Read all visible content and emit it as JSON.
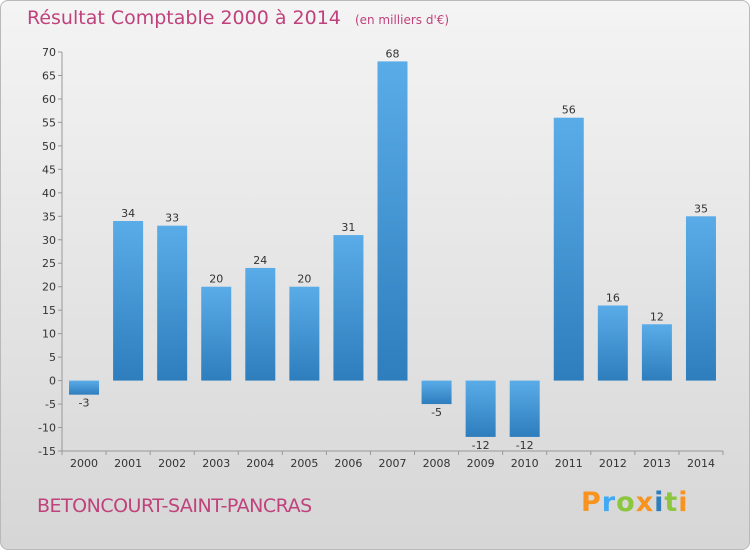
{
  "title": "Résultat Comptable 2000 à 2014",
  "subtitle": "(en milliers d'€)",
  "commune": "BETONCOURT-SAINT-PANCRAS",
  "logo": "Proxiti",
  "colors": {
    "title": "#c0427c",
    "bar_light": "#5aace8",
    "bar_dark": "#2e7dbd",
    "logo": [
      "#f7931e",
      "#3fa9f5",
      "#8cc63f",
      "#f7931e",
      "#2e7dbd",
      "#8cc63f",
      "#f7931e"
    ]
  },
  "chart_data": {
    "type": "bar",
    "title": "Résultat Comptable 2000 à 2014",
    "subtitle": "(en milliers d'€)",
    "categories": [
      "2000",
      "2001",
      "2002",
      "2003",
      "2004",
      "2005",
      "2006",
      "2007",
      "2008",
      "2009",
      "2010",
      "2011",
      "2012",
      "2013",
      "2014"
    ],
    "values": [
      -3,
      34,
      33,
      20,
      24,
      20,
      31,
      68,
      -5,
      -12,
      -12,
      56,
      16,
      12,
      35
    ],
    "labels": [
      "-3",
      "34",
      "33",
      "20",
      "24",
      "20",
      "31",
      "68",
      "-5",
      "-12",
      "-12",
      "56",
      "16",
      "12",
      "35"
    ],
    "ylim": [
      -15,
      70
    ],
    "yticks": [
      -15,
      -10,
      -5,
      0,
      5,
      10,
      15,
      20,
      25,
      30,
      35,
      40,
      45,
      50,
      55,
      60,
      65,
      70
    ],
    "xlabel": "",
    "ylabel": "",
    "grid": false
  }
}
